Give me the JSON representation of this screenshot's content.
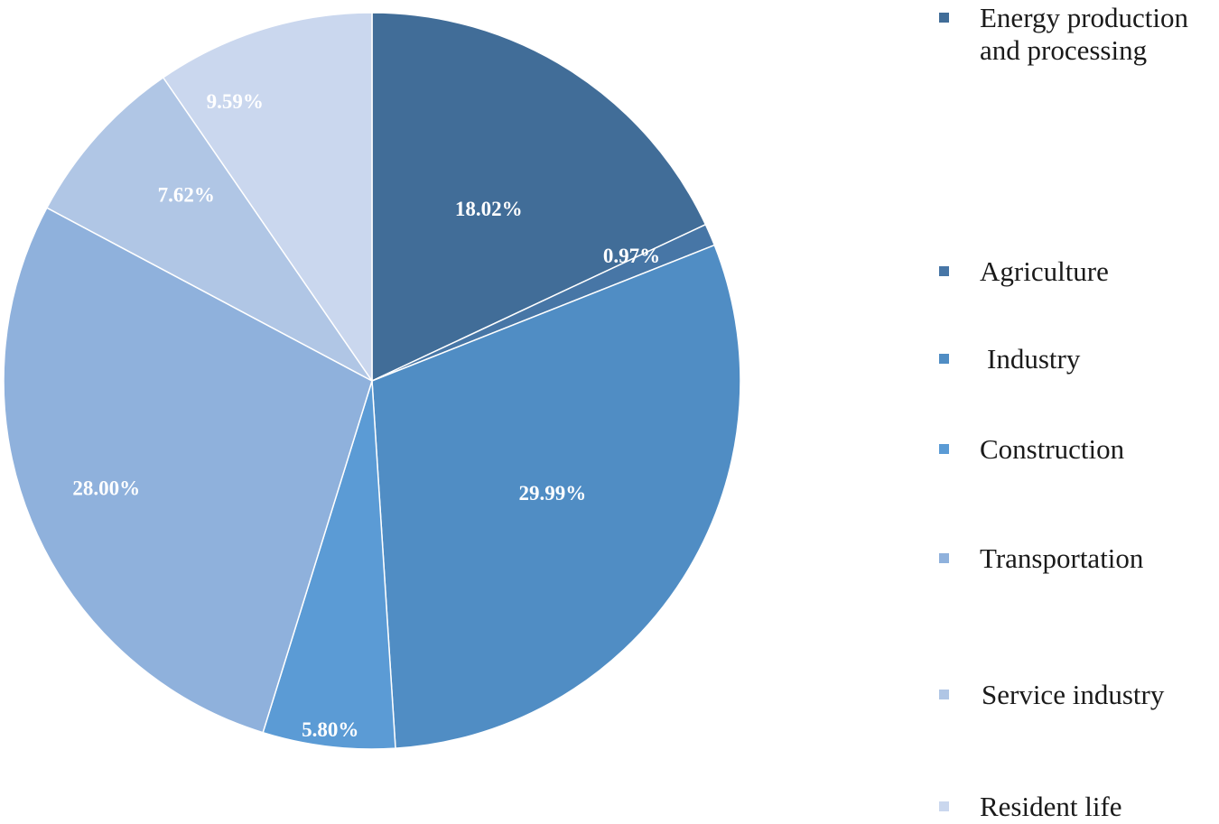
{
  "chart_data": {
    "type": "pie",
    "categories": [
      "Energy production and processing",
      "Agriculture",
      "Industry",
      "Construction",
      "Transportation",
      "Service industry",
      "Resident life"
    ],
    "values": [
      18.02,
      0.97,
      29.99,
      5.8,
      28.0,
      7.62,
      9.59
    ],
    "labels": [
      "18.02%",
      "0.97%",
      "29.99%",
      "5.80%",
      "28.00%",
      "7.62%",
      "9.59%"
    ],
    "colors": [
      "#416d98",
      "#4776a6",
      "#508dc4",
      "#5b9bd5",
      "#8fb1dc",
      "#b0c6e5",
      "#cad7ee"
    ],
    "start": "12 o'clock",
    "direction": "clockwise",
    "legend_position": "right"
  }
}
